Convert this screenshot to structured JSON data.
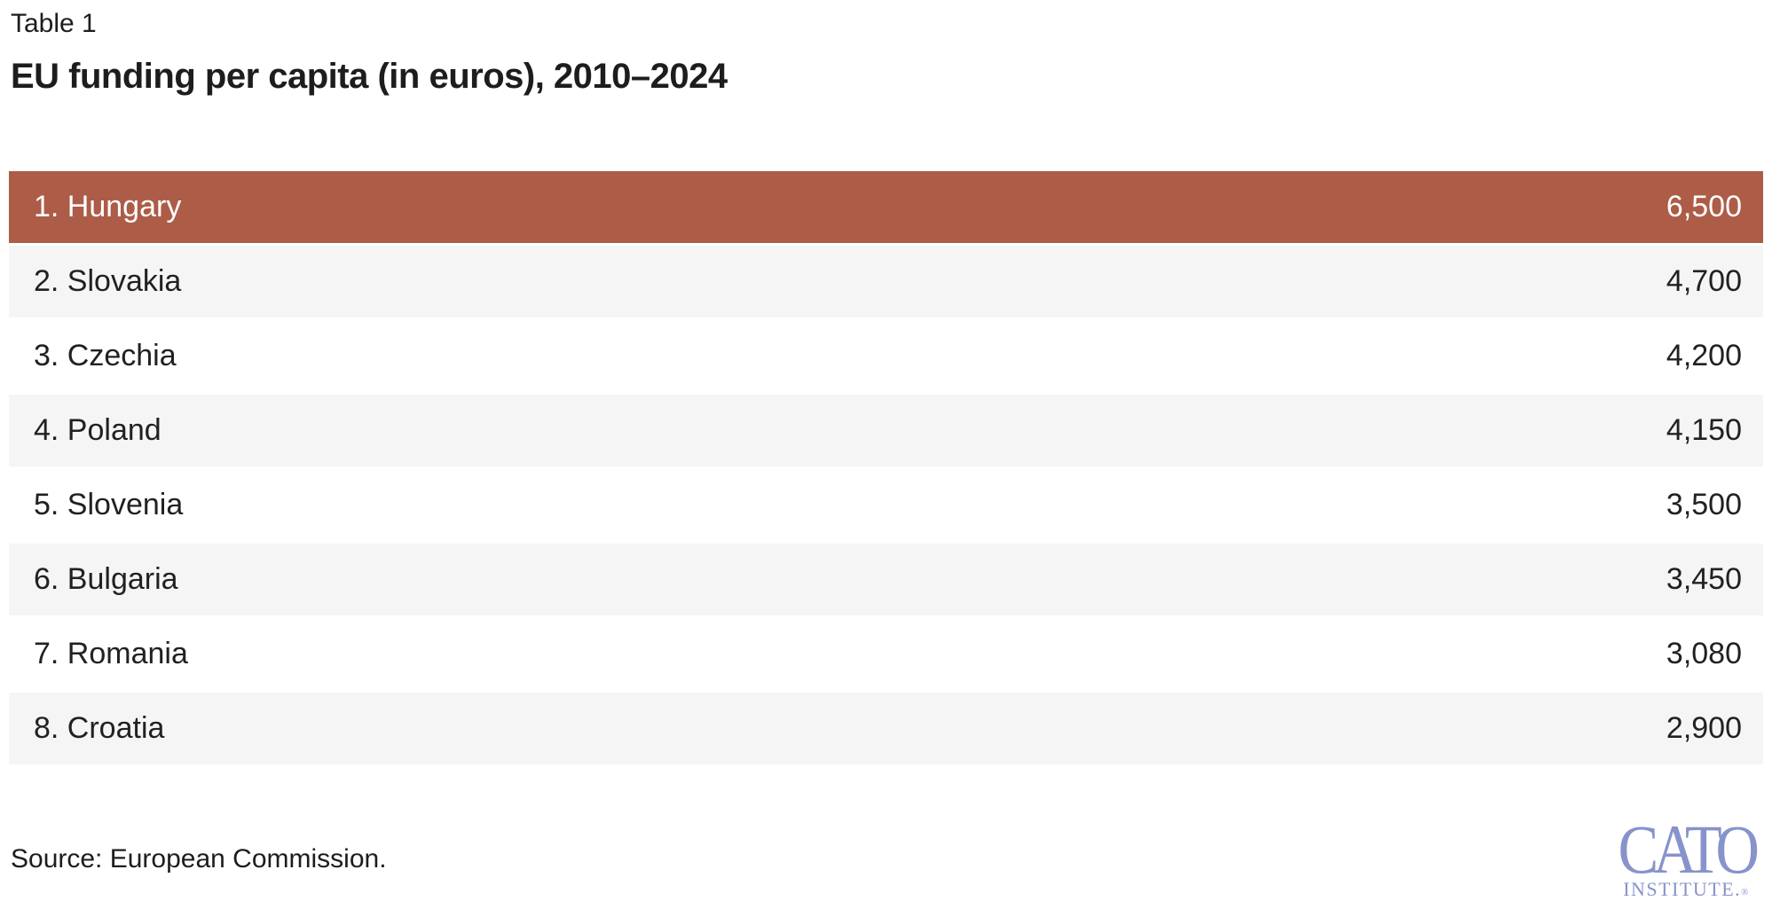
{
  "header": {
    "kicker": "Table 1",
    "title": "EU funding per capita (in euros), 2010–2024"
  },
  "chart_data": {
    "type": "table",
    "table_label": "Table 1",
    "title": "EU funding per capita (in euros), 2010–2024",
    "categories": [
      "Hungary",
      "Slovakia",
      "Czechia",
      "Poland",
      "Slovenia",
      "Bulgaria",
      "Romania",
      "Croatia"
    ],
    "values": [
      6500,
      4700,
      4200,
      4150,
      3500,
      3450,
      3080,
      2900
    ],
    "unit": "euros per capita",
    "highlighted_row": "Hungary",
    "source": "European Commission"
  },
  "table": {
    "rows": [
      {
        "label": "1. Hungary",
        "value": "6,500"
      },
      {
        "label": "2. Slovakia",
        "value": "4,700"
      },
      {
        "label": "3. Czechia",
        "value": "4,200"
      },
      {
        "label": "4. Poland",
        "value": "4,150"
      },
      {
        "label": "5. Slovenia",
        "value": "3,500"
      },
      {
        "label": "6. Bulgaria",
        "value": "3,450"
      },
      {
        "label": "7. Romania",
        "value": "3,080"
      },
      {
        "label": "8. Croatia",
        "value": "2,900"
      }
    ]
  },
  "footer": {
    "source": "Source: European Commission."
  },
  "logo": {
    "wordmark": "CATO",
    "subtitle": "INSTITUTE.",
    "registered": "®"
  },
  "colors": {
    "highlight": "#AC5C47",
    "row-alt": "#F5F5F5",
    "logo-blue": "#8793CB",
    "text": "#212121"
  }
}
